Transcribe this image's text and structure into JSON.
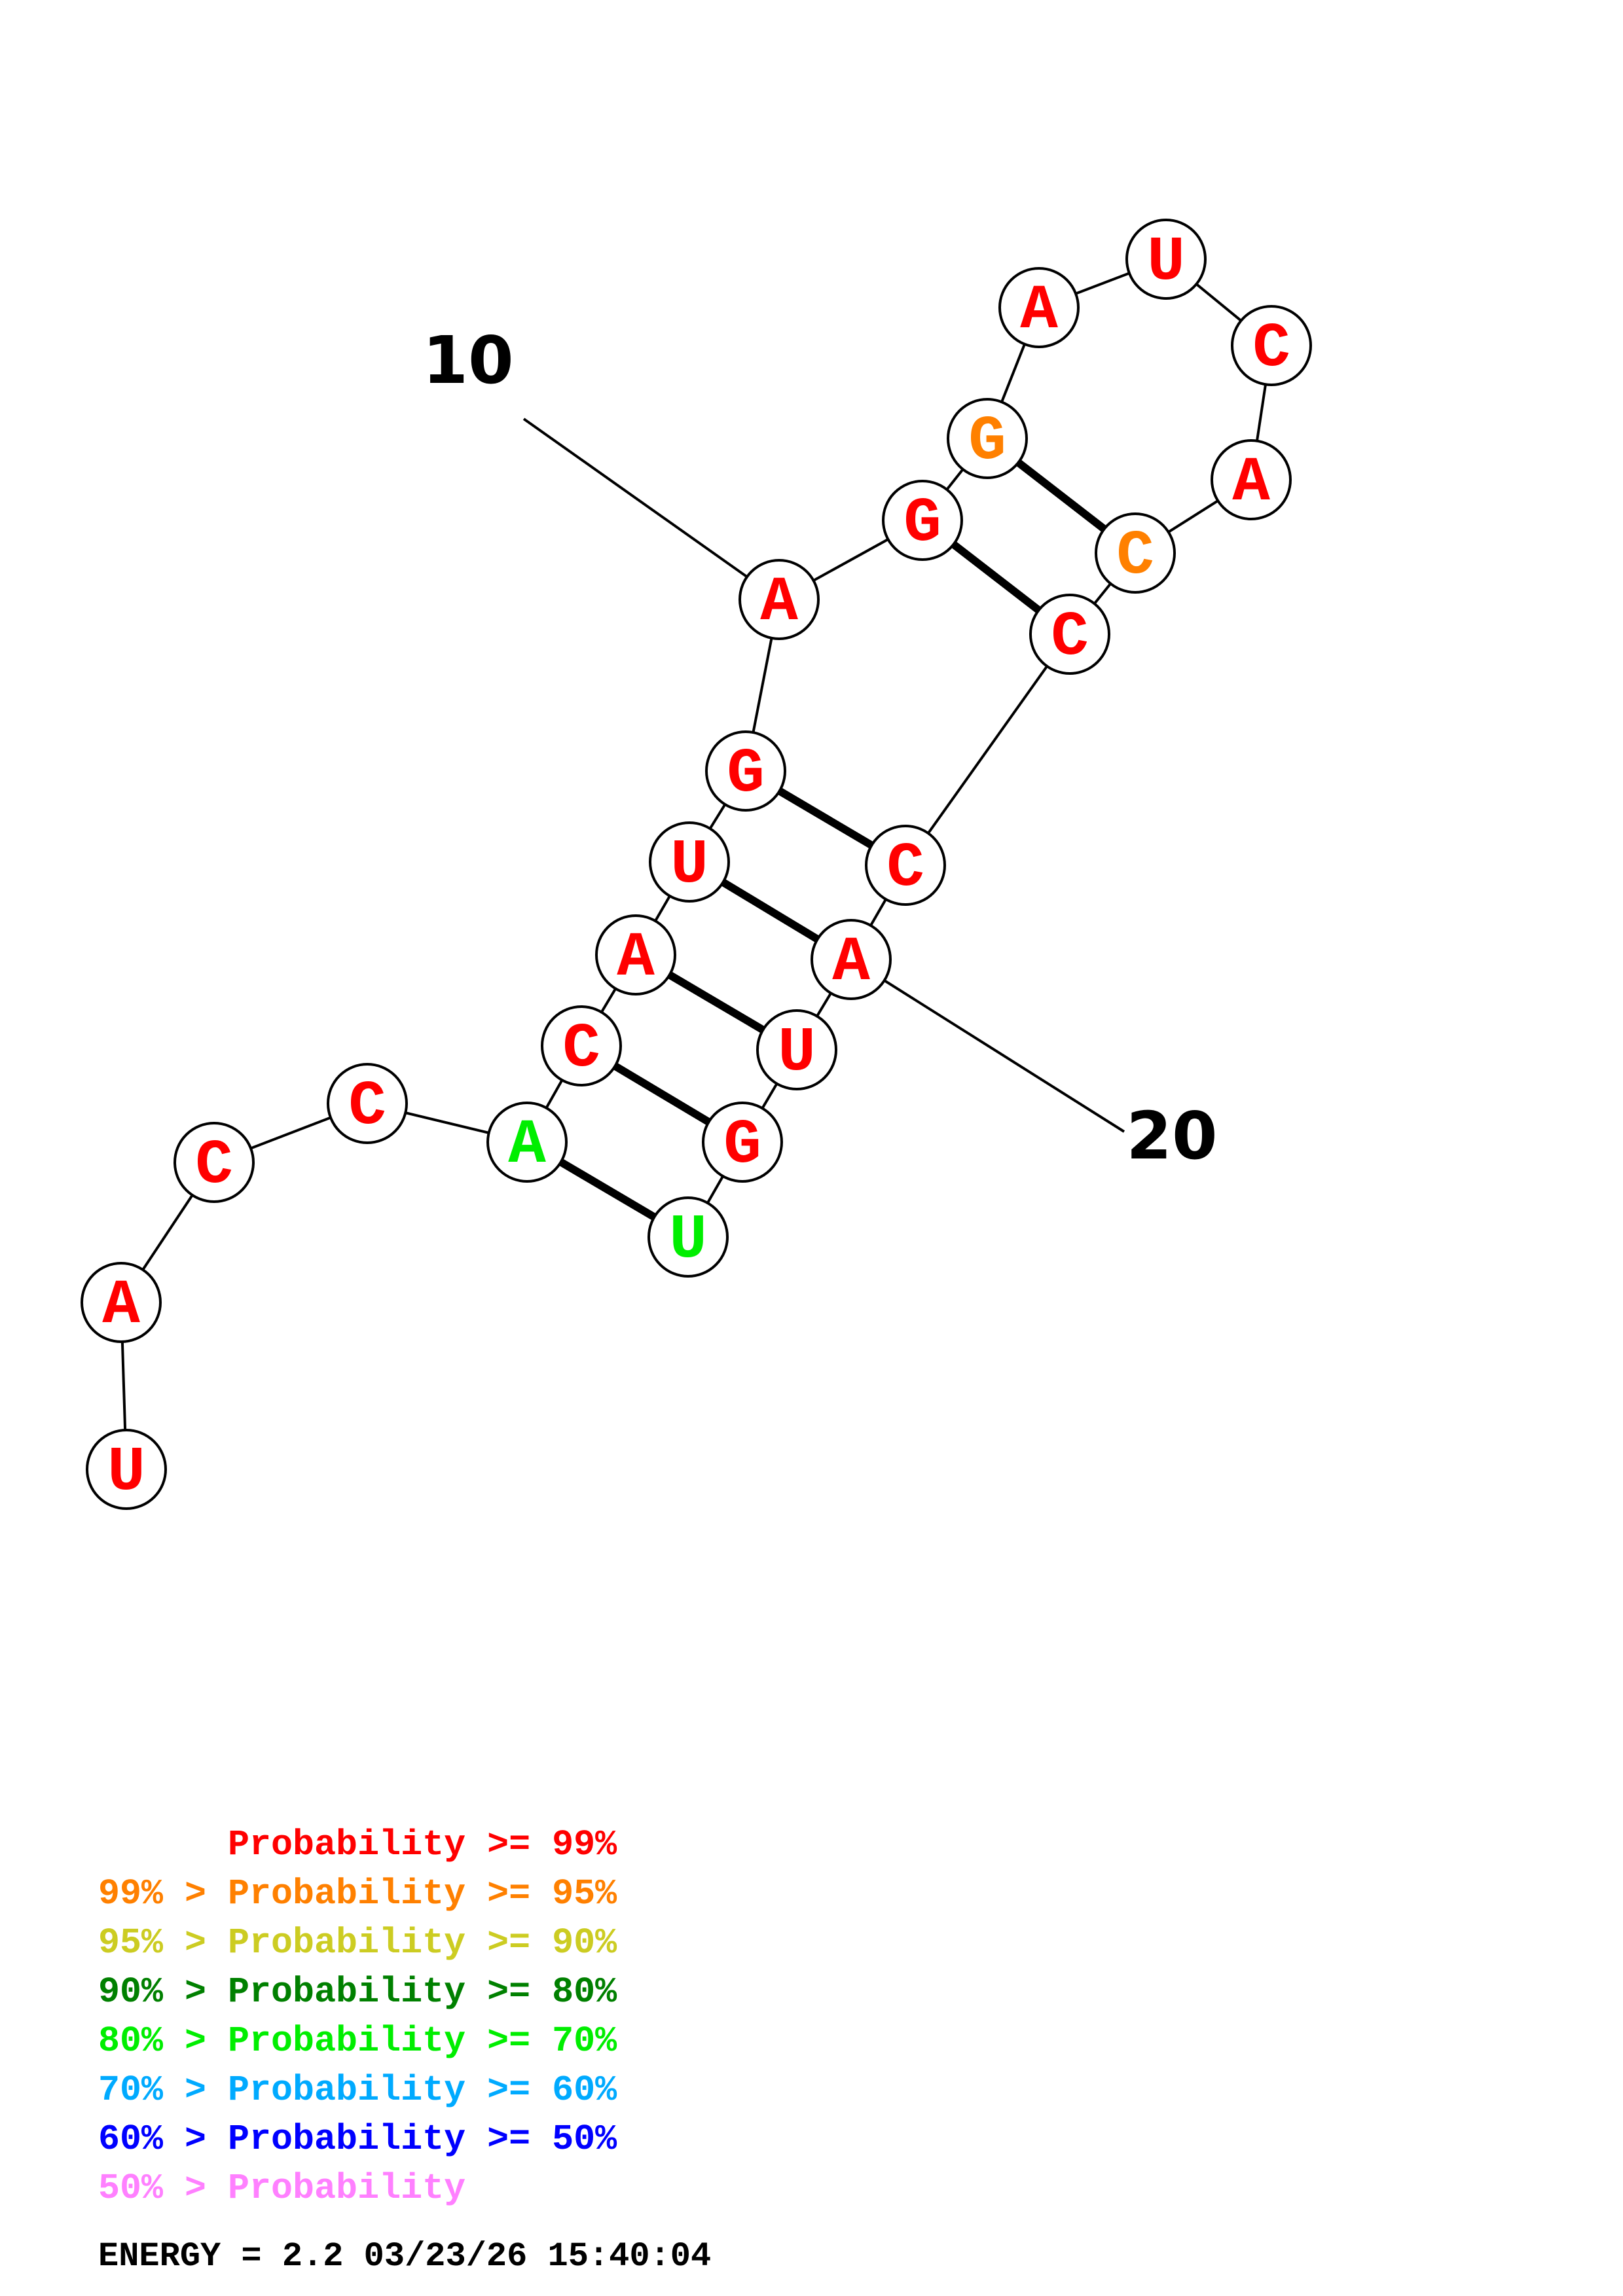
{
  "colors": {
    "p99": "#ff0000",
    "p95": "#ff8000",
    "p90": "#cccc22",
    "p80": "#008000",
    "p70": "#00ee00",
    "p60": "#00aaff",
    "p50": "#0000ff",
    "plow": "#ff80ff"
  },
  "sequence": [
    {
      "index": 1,
      "base": "U",
      "prob": "p99"
    },
    {
      "index": 2,
      "base": "A",
      "prob": "p99"
    },
    {
      "index": 3,
      "base": "C",
      "prob": "p99"
    },
    {
      "index": 4,
      "base": "C",
      "prob": "p99"
    },
    {
      "index": 5,
      "base": "A",
      "prob": "p70"
    },
    {
      "index": 6,
      "base": "C",
      "prob": "p99"
    },
    {
      "index": 7,
      "base": "A",
      "prob": "p99"
    },
    {
      "index": 8,
      "base": "U",
      "prob": "p99"
    },
    {
      "index": 9,
      "base": "G",
      "prob": "p99"
    },
    {
      "index": 10,
      "base": "A",
      "prob": "p99"
    },
    {
      "index": 11,
      "base": "G",
      "prob": "p99"
    },
    {
      "index": 12,
      "base": "G",
      "prob": "p95"
    },
    {
      "index": 13,
      "base": "A",
      "prob": "p99"
    },
    {
      "index": 14,
      "base": "U",
      "prob": "p99"
    },
    {
      "index": 15,
      "base": "C",
      "prob": "p99"
    },
    {
      "index": 16,
      "base": "A",
      "prob": "p99"
    },
    {
      "index": 17,
      "base": "C",
      "prob": "p95"
    },
    {
      "index": 18,
      "base": "C",
      "prob": "p99"
    },
    {
      "index": 19,
      "base": "C",
      "prob": "p99"
    },
    {
      "index": 20,
      "base": "A",
      "prob": "p99"
    },
    {
      "index": 21,
      "base": "U",
      "prob": "p99"
    },
    {
      "index": 22,
      "base": "G",
      "prob": "p99"
    },
    {
      "index": 23,
      "base": "U",
      "prob": "p70"
    }
  ],
  "pairs": [
    [
      5,
      23
    ],
    [
      6,
      22
    ],
    [
      7,
      21
    ],
    [
      8,
      20
    ],
    [
      9,
      19
    ],
    [
      11,
      18
    ],
    [
      12,
      17
    ]
  ],
  "position_labels": [
    {
      "index": 10,
      "text": "10"
    },
    {
      "index": 20,
      "text": "20"
    }
  ],
  "legend": {
    "rows": [
      {
        "prefix": "",
        "body": "Probability >= 99%",
        "color_key": "p99"
      },
      {
        "prefix": "99% > ",
        "body": "Probability >= 95%",
        "color_key": "p95"
      },
      {
        "prefix": "95% > ",
        "body": "Probability >= 90%",
        "color_key": "p90"
      },
      {
        "prefix": "90% > ",
        "body": "Probability >= 80%",
        "color_key": "p80"
      },
      {
        "prefix": "80% > ",
        "body": "Probability >= 70%",
        "color_key": "p70"
      },
      {
        "prefix": "70% > ",
        "body": "Probability >= 60%",
        "color_key": "p60"
      },
      {
        "prefix": "60% > ",
        "body": "Probability >= 50%",
        "color_key": "p50"
      },
      {
        "prefix": "50% > ",
        "body": "Probability",
        "color_key": "plow"
      }
    ],
    "energy_line": "ENERGY = 2.2  03/23/26 15:40:04"
  }
}
